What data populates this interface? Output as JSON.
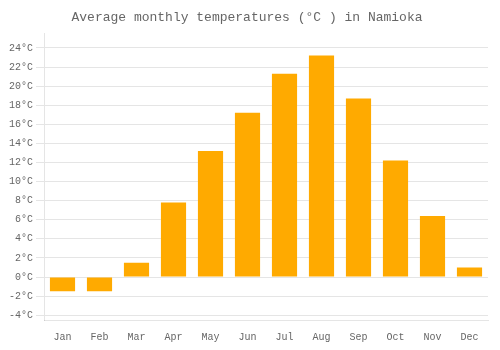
{
  "chart_data": {
    "type": "bar",
    "title": "Average monthly temperatures (°C ) in Namioka",
    "categories": [
      "Jan",
      "Feb",
      "Mar",
      "Apr",
      "May",
      "Jun",
      "Jul",
      "Aug",
      "Sep",
      "Oct",
      "Nov",
      "Dec"
    ],
    "values": [
      -1.5,
      -1.5,
      1.5,
      7.8,
      13.2,
      17.2,
      21.3,
      23.2,
      18.7,
      12.2,
      6.4,
      1.0
    ],
    "color": "#FFAA00",
    "ylim": [
      -4.5,
      25.5
    ],
    "yticks": [
      {
        "value": -4,
        "label": "-4°C"
      },
      {
        "value": -2,
        "label": "-2°C"
      },
      {
        "value": 0,
        "label": "0°C"
      },
      {
        "value": 2,
        "label": "2°C"
      },
      {
        "value": 4,
        "label": "4°C"
      },
      {
        "value": 6,
        "label": "6°C"
      },
      {
        "value": 8,
        "label": "8°C"
      },
      {
        "value": 10,
        "label": "10°C"
      },
      {
        "value": 12,
        "label": "12°C"
      },
      {
        "value": 14,
        "label": "14°C"
      },
      {
        "value": 16,
        "label": "16°C"
      },
      {
        "value": 18,
        "label": "18°C"
      },
      {
        "value": 20,
        "label": "20°C"
      },
      {
        "value": 22,
        "label": "22°C"
      },
      {
        "value": 24,
        "label": "24°C"
      }
    ],
    "grid": true
  }
}
